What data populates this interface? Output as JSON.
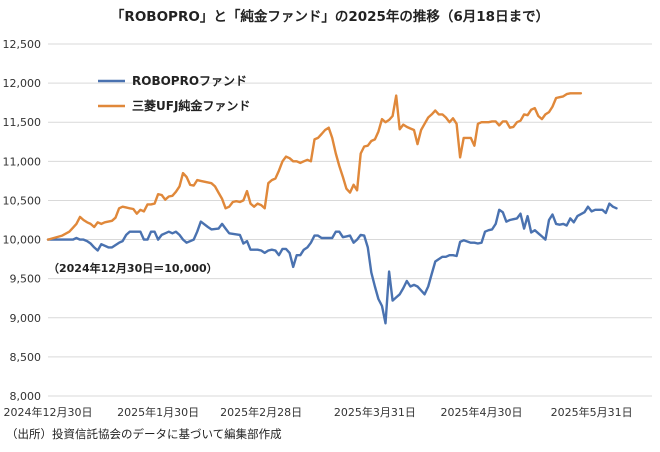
{
  "chart_data": {
    "type": "line",
    "title": "「ROBOPRO」と「純金ファンド」の2025年の推移（6月18日まで）",
    "ylim": [
      8000,
      12500
    ],
    "yticks": [
      8000,
      8500,
      9000,
      9500,
      10000,
      10500,
      11000,
      11500,
      12000,
      12500
    ],
    "ytick_labels": [
      "8,000",
      "8,500",
      "9,000",
      "9,500",
      "10,000",
      "10,500",
      "11,000",
      "11,500",
      "12,000",
      "12,500"
    ],
    "xlim": [
      0,
      170
    ],
    "xticks": [
      {
        "x": 0,
        "label": "2024年12月30日"
      },
      {
        "x": 31,
        "label": "2025年1月30日"
      },
      {
        "x": 60,
        "label": "2025年2月28日"
      },
      {
        "x": 92,
        "label": "2025年3月31日"
      },
      {
        "x": 122,
        "label": "2025年4月30日"
      },
      {
        "x": 153,
        "label": "2025年5月31日"
      }
    ],
    "annotation": "（2024年12月30日＝10,000）",
    "source": "（出所）投資信託協会のデータに基づいて編集部作成",
    "series": [
      {
        "name": "ROBOPROファンド",
        "color": "#4a72b0",
        "points": [
          [
            0,
            10000
          ],
          [
            3,
            10000
          ],
          [
            5,
            10000
          ],
          [
            7,
            10000
          ],
          [
            8,
            10020
          ],
          [
            9,
            10000
          ],
          [
            10,
            10000
          ],
          [
            11,
            9980
          ],
          [
            12,
            9950
          ],
          [
            13,
            9900
          ],
          [
            14,
            9860
          ],
          [
            15,
            9940
          ],
          [
            17,
            9900
          ],
          [
            18,
            9900
          ],
          [
            20,
            9960
          ],
          [
            21,
            9980
          ],
          [
            22,
            10060
          ],
          [
            23,
            10100
          ],
          [
            25,
            10100
          ],
          [
            26,
            10100
          ],
          [
            27,
            10000
          ],
          [
            28,
            10000
          ],
          [
            29,
            10100
          ],
          [
            30,
            10100
          ],
          [
            31,
            10000
          ],
          [
            32,
            10060
          ],
          [
            33,
            10080
          ],
          [
            34,
            10100
          ],
          [
            35,
            10080
          ],
          [
            36,
            10100
          ],
          [
            37,
            10060
          ],
          [
            38,
            10000
          ],
          [
            39,
            9960
          ],
          [
            41,
            10000
          ],
          [
            42,
            10100
          ],
          [
            43,
            10230
          ],
          [
            45,
            10160
          ],
          [
            46,
            10130
          ],
          [
            48,
            10140
          ],
          [
            49,
            10200
          ],
          [
            50,
            10140
          ],
          [
            51,
            10080
          ],
          [
            54,
            10060
          ],
          [
            55,
            9950
          ],
          [
            56,
            9980
          ],
          [
            57,
            9870
          ],
          [
            59,
            9870
          ],
          [
            60,
            9860
          ],
          [
            61,
            9830
          ],
          [
            62,
            9860
          ],
          [
            63,
            9870
          ],
          [
            64,
            9860
          ],
          [
            65,
            9800
          ],
          [
            66,
            9880
          ],
          [
            67,
            9880
          ],
          [
            68,
            9830
          ],
          [
            69,
            9650
          ],
          [
            70,
            9800
          ],
          [
            71,
            9800
          ],
          [
            72,
            9870
          ],
          [
            73,
            9900
          ],
          [
            74,
            9960
          ],
          [
            75,
            10050
          ],
          [
            76,
            10050
          ],
          [
            77,
            10020
          ],
          [
            78,
            10020
          ],
          [
            80,
            10020
          ],
          [
            81,
            10100
          ],
          [
            82,
            10100
          ],
          [
            83,
            10030
          ],
          [
            84,
            10040
          ],
          [
            85,
            10050
          ],
          [
            86,
            9960
          ],
          [
            87,
            10000
          ],
          [
            88,
            10060
          ],
          [
            89,
            10050
          ],
          [
            90,
            9900
          ],
          [
            91,
            9580
          ],
          [
            92,
            9400
          ],
          [
            93,
            9240
          ],
          [
            94,
            9150
          ],
          [
            95,
            8930
          ],
          [
            96,
            9590
          ],
          [
            97,
            9220
          ],
          [
            98,
            9260
          ],
          [
            99,
            9300
          ],
          [
            100,
            9380
          ],
          [
            101,
            9470
          ],
          [
            102,
            9400
          ],
          [
            103,
            9420
          ],
          [
            104,
            9400
          ],
          [
            105,
            9350
          ],
          [
            106,
            9300
          ],
          [
            107,
            9400
          ],
          [
            108,
            9560
          ],
          [
            109,
            9720
          ],
          [
            110,
            9750
          ],
          [
            111,
            9780
          ],
          [
            112,
            9780
          ],
          [
            113,
            9800
          ],
          [
            114,
            9800
          ],
          [
            115,
            9790
          ],
          [
            116,
            9970
          ],
          [
            117,
            9990
          ],
          [
            119,
            9960
          ],
          [
            120,
            9960
          ],
          [
            121,
            9950
          ],
          [
            122,
            9960
          ],
          [
            123,
            10100
          ],
          [
            124,
            10120
          ],
          [
            125,
            10130
          ],
          [
            126,
            10200
          ],
          [
            127,
            10380
          ],
          [
            128,
            10350
          ],
          [
            129,
            10230
          ],
          [
            130,
            10250
          ],
          [
            131,
            10260
          ],
          [
            132,
            10270
          ],
          [
            133,
            10330
          ],
          [
            134,
            10140
          ],
          [
            135,
            10300
          ],
          [
            136,
            10090
          ],
          [
            137,
            10120
          ],
          [
            138,
            10080
          ],
          [
            139,
            10040
          ],
          [
            140,
            10000
          ],
          [
            141,
            10250
          ],
          [
            142,
            10320
          ],
          [
            143,
            10200
          ],
          [
            144,
            10190
          ],
          [
            145,
            10200
          ],
          [
            146,
            10180
          ],
          [
            147,
            10270
          ],
          [
            148,
            10220
          ],
          [
            149,
            10300
          ],
          [
            151,
            10350
          ],
          [
            152,
            10420
          ],
          [
            153,
            10360
          ],
          [
            154,
            10380
          ],
          [
            156,
            10380
          ],
          [
            157,
            10340
          ],
          [
            158,
            10460
          ],
          [
            159,
            10420
          ],
          [
            160,
            10400
          ]
        ]
      },
      {
        "name": "三菱UFJ純金ファンド",
        "color": "#e0883a",
        "points": [
          [
            0,
            10000
          ],
          [
            4,
            10050
          ],
          [
            6,
            10100
          ],
          [
            7,
            10150
          ],
          [
            8,
            10200
          ],
          [
            9,
            10290
          ],
          [
            10,
            10250
          ],
          [
            11,
            10220
          ],
          [
            12,
            10200
          ],
          [
            13,
            10160
          ],
          [
            14,
            10220
          ],
          [
            15,
            10200
          ],
          [
            16,
            10220
          ],
          [
            18,
            10240
          ],
          [
            19,
            10280
          ],
          [
            20,
            10400
          ],
          [
            21,
            10420
          ],
          [
            23,
            10400
          ],
          [
            24,
            10390
          ],
          [
            25,
            10330
          ],
          [
            26,
            10380
          ],
          [
            27,
            10360
          ],
          [
            28,
            10450
          ],
          [
            29,
            10450
          ],
          [
            30,
            10460
          ],
          [
            31,
            10580
          ],
          [
            32,
            10570
          ],
          [
            33,
            10510
          ],
          [
            34,
            10550
          ],
          [
            35,
            10560
          ],
          [
            36,
            10610
          ],
          [
            37,
            10680
          ],
          [
            38,
            10850
          ],
          [
            39,
            10800
          ],
          [
            40,
            10700
          ],
          [
            41,
            10690
          ],
          [
            42,
            10760
          ],
          [
            43,
            10750
          ],
          [
            46,
            10720
          ],
          [
            47,
            10680
          ],
          [
            48,
            10600
          ],
          [
            49,
            10520
          ],
          [
            50,
            10400
          ],
          [
            51,
            10420
          ],
          [
            52,
            10480
          ],
          [
            53,
            10490
          ],
          [
            54,
            10480
          ],
          [
            55,
            10500
          ],
          [
            56,
            10620
          ],
          [
            57,
            10460
          ],
          [
            58,
            10420
          ],
          [
            59,
            10460
          ],
          [
            60,
            10440
          ],
          [
            61,
            10400
          ],
          [
            62,
            10720
          ],
          [
            63,
            10760
          ],
          [
            64,
            10780
          ],
          [
            65,
            10880
          ],
          [
            66,
            11000
          ],
          [
            67,
            11060
          ],
          [
            68,
            11040
          ],
          [
            69,
            11000
          ],
          [
            70,
            11000
          ],
          [
            71,
            10980
          ],
          [
            72,
            11000
          ],
          [
            73,
            11020
          ],
          [
            74,
            11000
          ],
          [
            75,
            11280
          ],
          [
            76,
            11300
          ],
          [
            77,
            11350
          ],
          [
            78,
            11400
          ],
          [
            79,
            11430
          ],
          [
            80,
            11300
          ],
          [
            81,
            11100
          ],
          [
            82,
            10940
          ],
          [
            83,
            10800
          ],
          [
            84,
            10650
          ],
          [
            85,
            10600
          ],
          [
            86,
            10700
          ],
          [
            87,
            10630
          ],
          [
            88,
            11100
          ],
          [
            89,
            11190
          ],
          [
            90,
            11200
          ],
          [
            91,
            11260
          ],
          [
            92,
            11280
          ],
          [
            93,
            11380
          ],
          [
            94,
            11540
          ],
          [
            95,
            11500
          ],
          [
            96,
            11530
          ],
          [
            97,
            11580
          ],
          [
            98,
            11840
          ],
          [
            99,
            11410
          ],
          [
            100,
            11470
          ],
          [
            101,
            11440
          ],
          [
            102,
            11420
          ],
          [
            103,
            11400
          ],
          [
            104,
            11220
          ],
          [
            105,
            11400
          ],
          [
            106,
            11480
          ],
          [
            107,
            11560
          ],
          [
            108,
            11600
          ],
          [
            109,
            11650
          ],
          [
            110,
            11600
          ],
          [
            111,
            11600
          ],
          [
            112,
            11560
          ],
          [
            113,
            11500
          ],
          [
            114,
            11550
          ],
          [
            115,
            11480
          ],
          [
            116,
            11050
          ],
          [
            117,
            11300
          ],
          [
            118,
            11300
          ],
          [
            119,
            11300
          ],
          [
            120,
            11200
          ],
          [
            121,
            11480
          ],
          [
            122,
            11500
          ],
          [
            124,
            11500
          ],
          [
            125,
            11510
          ],
          [
            126,
            11510
          ],
          [
            127,
            11460
          ],
          [
            128,
            11510
          ],
          [
            129,
            11510
          ],
          [
            130,
            11430
          ],
          [
            131,
            11440
          ],
          [
            132,
            11500
          ],
          [
            133,
            11520
          ],
          [
            134,
            11600
          ],
          [
            135,
            11590
          ],
          [
            136,
            11660
          ],
          [
            137,
            11680
          ],
          [
            138,
            11580
          ],
          [
            139,
            11540
          ],
          [
            140,
            11600
          ],
          [
            141,
            11630
          ],
          [
            142,
            11700
          ],
          [
            143,
            11810
          ],
          [
            144,
            11820
          ],
          [
            145,
            11830
          ],
          [
            146,
            11860
          ],
          [
            147,
            11870
          ],
          [
            150,
            11870
          ]
        ]
      }
    ]
  }
}
